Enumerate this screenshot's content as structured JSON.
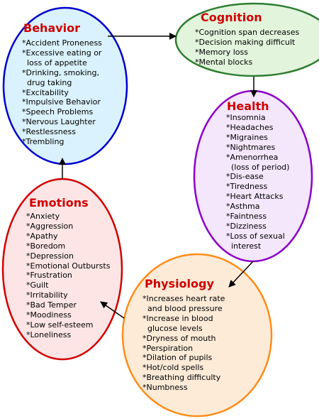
{
  "nodes": {
    "behavior": {
      "title": "Behavior",
      "border_color": "#0000cc",
      "fill_color": "#daf2fd",
      "items": [
        "*Accident Proneness",
        "*Excessive eating or",
        "  loss of appetite",
        "*Drinking, smoking,",
        "  drug taking",
        "*Excitability",
        "*Impulsive Behavior",
        "*Speech Problems",
        "*Nervous Laughter",
        "*Restlessness",
        "*Trembling"
      ]
    },
    "cognition": {
      "title": "Cognition",
      "border_color": "#2e7d32",
      "fill_color": "#e2f4dc",
      "items": [
        "*Cognition span decreases",
        "*Decision making difficult",
        "*Memory loss",
        "*Mental blocks"
      ]
    },
    "health": {
      "title": "Health",
      "border_color": "#8a00c8",
      "fill_color": "#f4e6fb",
      "items": [
        "*Insomnia",
        "*Headaches",
        "*Migraines",
        "*Nightmares",
        "*Amenorrhea",
        "  (loss of period)",
        "*Dis-ease",
        "*Tiredness",
        "*Heart Attacks",
        "*Asthma",
        "*Faintness",
        "*Dizziness",
        "*Loss of sexual",
        "  interest"
      ]
    },
    "physiology": {
      "title": "Physiology",
      "border_color": "#ff8c1a",
      "fill_color": "#fdebd8",
      "items": [
        "*Increases heart rate",
        "  and blood pressure",
        "*Increase in blood",
        "  glucose levels",
        "*Dryness of mouth",
        "*Perspiration",
        "*Dilation of pupils",
        "*Hot/cold spells",
        "*Breathing difficulty",
        "*Numbness"
      ]
    },
    "emotions": {
      "title": "Emotions",
      "border_color": "#d40000",
      "fill_color": "#fde5e5",
      "items": [
        "*Anxiety",
        "*Aggression",
        "*Apathy",
        "*Boredom",
        "*Depression",
        "*Emotional Outbursts",
        "*Frustration",
        "*Guilt",
        "*Irritability",
        "*Bad Temper",
        "*Moodiness",
        "*Low self-esteem",
        "*Loneliness"
      ]
    }
  },
  "edges": [
    {
      "from": "behavior",
      "to": "cognition"
    },
    {
      "from": "cognition",
      "to": "health"
    },
    {
      "from": "health",
      "to": "physiology"
    },
    {
      "from": "physiology",
      "to": "emotions"
    },
    {
      "from": "emotions",
      "to": "behavior"
    }
  ],
  "title_color": "#d00000"
}
